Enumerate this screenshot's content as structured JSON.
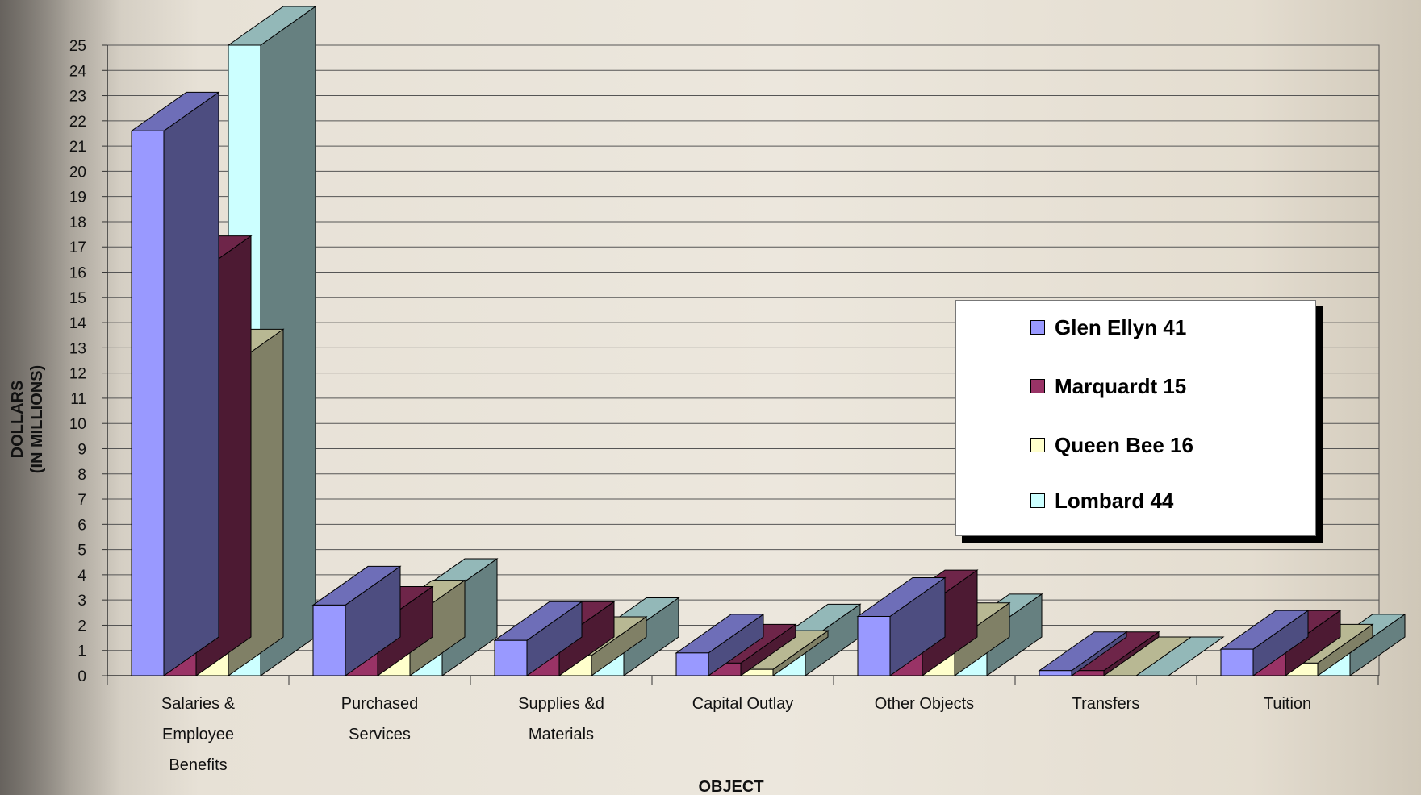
{
  "chart_data": {
    "type": "bar",
    "xlabel": "OBJECT",
    "ylabel_lines": [
      "DOLLARS",
      "(IN MILLIONS)"
    ],
    "ylim": [
      0,
      25
    ],
    "yticks": [
      0,
      1,
      2,
      3,
      4,
      5,
      6,
      7,
      8,
      9,
      10,
      11,
      12,
      13,
      14,
      15,
      16,
      17,
      18,
      19,
      20,
      21,
      22,
      23,
      24,
      25
    ],
    "categories": [
      [
        "Salaries &",
        "Employee",
        "Benefits"
      ],
      [
        "Purchased",
        "Services"
      ],
      [
        "Supplies &d",
        "Materials"
      ],
      [
        "Capital Outlay"
      ],
      [
        "Other Objects"
      ],
      [
        "Transfers"
      ],
      [
        "Tuition"
      ]
    ],
    "series": [
      {
        "name": "Glen Ellyn 41",
        "color": "#9999ff",
        "values": [
          21.6,
          2.8,
          1.4,
          0.9,
          2.35,
          0.2,
          1.05
        ]
      },
      {
        "name": "Marquardt 15",
        "color": "#993366",
        "values": [
          15.9,
          2.0,
          1.4,
          0.5,
          2.65,
          0.2,
          1.05
        ]
      },
      {
        "name": "Queen Bee 16",
        "color": "#ffffcc",
        "values": [
          12.2,
          2.25,
          0.8,
          0.25,
          1.35,
          0.0,
          0.5
        ]
      },
      {
        "name": "Lombard 44",
        "color": "#ccffff",
        "values": [
          25.0,
          3.1,
          1.55,
          1.3,
          1.7,
          0.0,
          0.9
        ]
      }
    ],
    "grid": true,
    "legend_position": "right"
  }
}
